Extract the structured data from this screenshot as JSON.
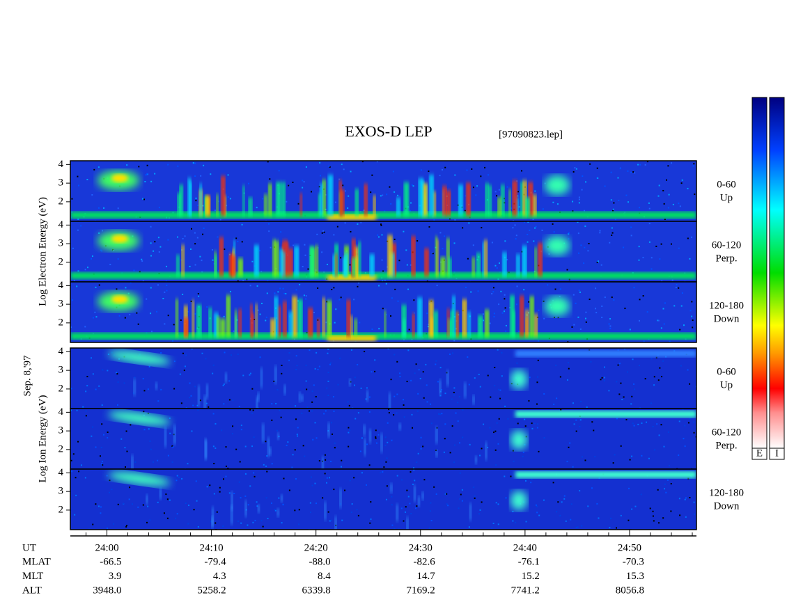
{
  "title": "EXOS-D LEP",
  "file_label": "[97090823.lep]",
  "date_label": "Sep. 8,'97",
  "axes": {
    "ylim": [
      0.95,
      4.2
    ],
    "yticks": [
      2,
      3,
      4
    ],
    "xlim": [
      1436.5,
      1496.4
    ],
    "xticks": [
      {
        "value": 1440,
        "label": "24:00"
      },
      {
        "value": 1450,
        "label": "24:10"
      },
      {
        "value": 1460,
        "label": "24:20"
      },
      {
        "value": 1470,
        "label": "24:30"
      },
      {
        "value": 1480,
        "label": "24:40"
      },
      {
        "value": 1490,
        "label": "24:50"
      }
    ],
    "minor_xticks": [
      1438,
      1442,
      1444,
      1446,
      1448,
      1452,
      1454,
      1456,
      1458,
      1462,
      1464,
      1466,
      1468,
      1472,
      1474,
      1476,
      1478,
      1482,
      1484,
      1486,
      1488,
      1492,
      1494,
      1496
    ]
  },
  "groups": [
    {
      "ylabel": "Log Electron Energy (eV)",
      "panels": [
        {
          "label": [
            "0-60",
            "Up"
          ]
        },
        {
          "label": [
            "60-120",
            "Perp."
          ]
        },
        {
          "label": [
            "120-180",
            "Down"
          ]
        }
      ]
    },
    {
      "ylabel": "Log Ion Energy (eV)",
      "panels": [
        {
          "label": [
            "0-60",
            "Up"
          ]
        },
        {
          "label": [
            "60-120",
            "Perp."
          ]
        },
        {
          "label": [
            "120-180",
            "Down"
          ]
        }
      ]
    }
  ],
  "colorbars": [
    {
      "label": "E"
    },
    {
      "label": "I"
    }
  ],
  "table": {
    "rows": [
      {
        "label": "UT"
      },
      {
        "label": "MLAT",
        "values": [
          "-66.5",
          "-79.4",
          "-88.0",
          "-82.6",
          "-76.1",
          "-70.3"
        ]
      },
      {
        "label": "MLT",
        "values": [
          "3.9",
          "4.3",
          "8.4",
          "14.7",
          "15.2",
          "15.3"
        ]
      },
      {
        "label": "ALT",
        "values": [
          "3948.0",
          "5258.2",
          "6339.8",
          "7169.2",
          "7741.2",
          "8056.8"
        ]
      }
    ]
  }
}
